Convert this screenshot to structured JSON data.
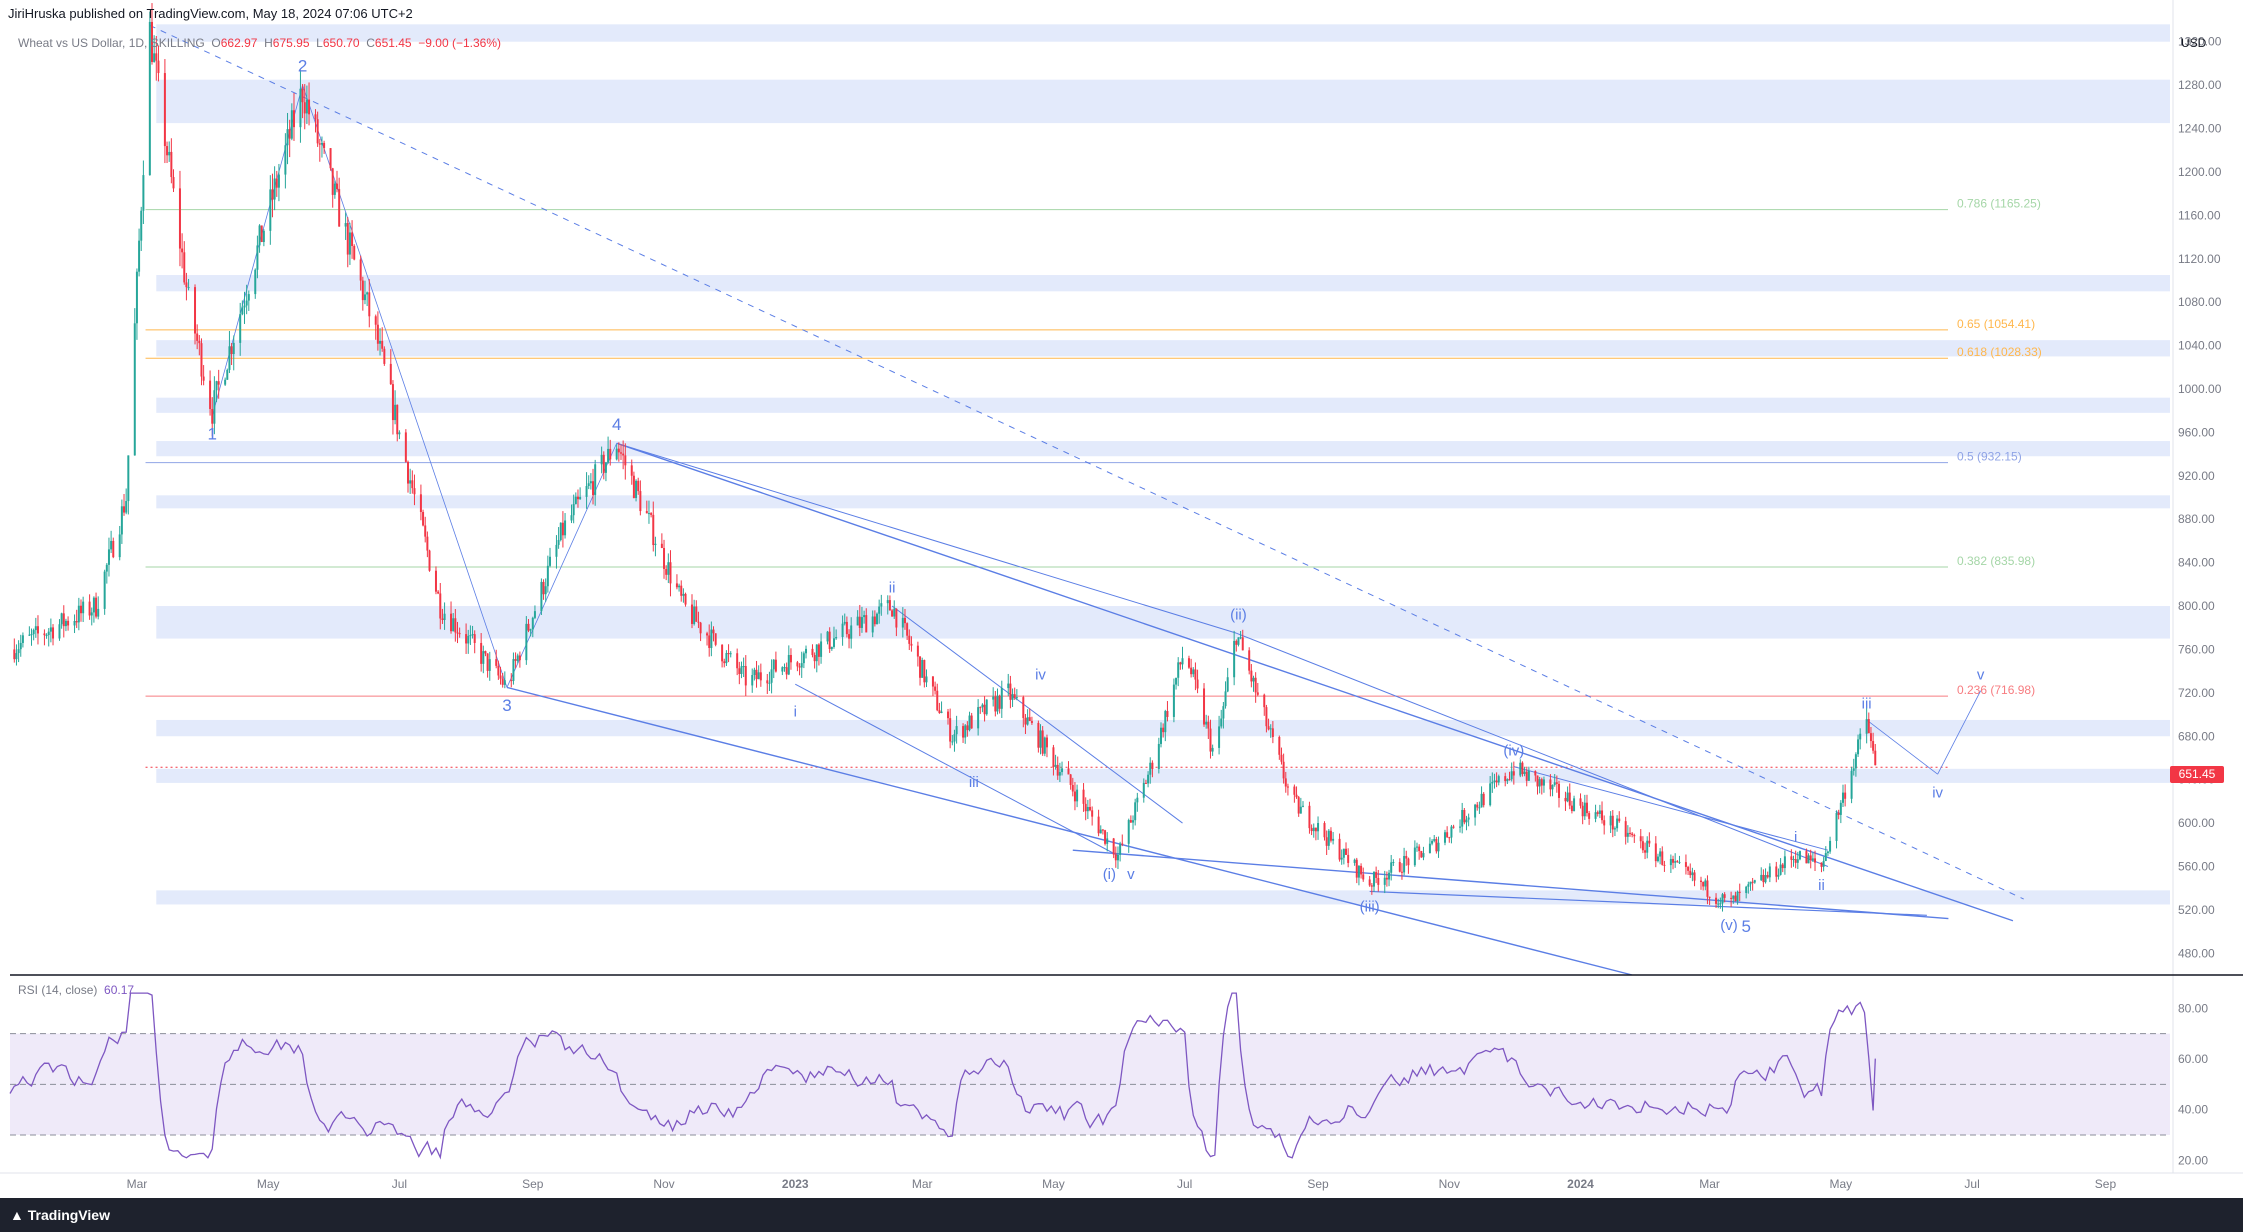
{
  "header": {
    "published": "JiriHruska published on TradingView.com, May 18, 2024 07:06 UTC+2"
  },
  "legend": {
    "symbol": "Wheat vs US Dollar, 1D, SKILLING",
    "open_label": "O",
    "open": "662.97",
    "high_label": "H",
    "high": "675.95",
    "low_label": "L",
    "low": "650.70",
    "close_label": "C",
    "close": "651.45",
    "change": "−9.00 (−1.36%)"
  },
  "rsi_legend": {
    "label": "RSI (14, close)",
    "value": "60.17"
  },
  "currency": "USD",
  "footer": {
    "brand": "TradingView"
  },
  "chart_data": {
    "type": "candlestick",
    "title": "Wheat vs US Dollar, 1D, SKILLING",
    "currency": "USD",
    "ylim": [
      460,
      1340
    ],
    "y_ticks": [
      480,
      520,
      560,
      600,
      640,
      680,
      720,
      760,
      800,
      840,
      880,
      920,
      960,
      1000,
      1040,
      1080,
      1120,
      1160,
      1200,
      1240,
      1280,
      1320
    ],
    "x_ticks": [
      "Mar",
      "May",
      "Jul",
      "Sep",
      "Nov",
      "2023",
      "Mar",
      "May",
      "Jul",
      "Sep",
      "Nov",
      "2024",
      "Mar",
      "May",
      "Jul",
      "Sep"
    ],
    "last_price": "651.45",
    "price_path": [
      [
        "2022-01-01",
        760
      ],
      [
        "2022-02-10",
        800
      ],
      [
        "2022-02-24",
        900
      ],
      [
        "2022-03-07",
        1330
      ],
      [
        "2022-03-25",
        1080
      ],
      [
        "2022-04-05",
        980
      ],
      [
        "2022-05-17",
        1275
      ],
      [
        "2022-06-20",
        1050
      ],
      [
        "2022-07-20",
        800
      ],
      [
        "2022-08-20",
        725
      ],
      [
        "2022-09-15",
        870
      ],
      [
        "2022-10-10",
        950
      ],
      [
        "2022-11-10",
        800
      ],
      [
        "2022-12-10",
        730
      ],
      [
        "2023-01-10",
        760
      ],
      [
        "2023-02-15",
        800
      ],
      [
        "2023-03-15",
        680
      ],
      [
        "2023-04-10",
        720
      ],
      [
        "2023-05-31",
        570
      ],
      [
        "2023-06-15",
        650
      ],
      [
        "2023-07-01",
        760
      ],
      [
        "2023-07-15",
        660
      ],
      [
        "2023-07-25",
        775
      ],
      [
        "2023-08-20",
        620
      ],
      [
        "2023-09-25",
        545
      ],
      [
        "2023-10-25",
        580
      ],
      [
        "2023-12-01",
        650
      ],
      [
        "2024-01-15",
        600
      ],
      [
        "2024-03-10",
        525
      ],
      [
        "2024-04-10",
        570
      ],
      [
        "2024-04-22",
        560
      ],
      [
        "2024-05-13",
        695
      ],
      [
        "2024-05-17",
        651.45
      ]
    ],
    "fib_levels": [
      {
        "ratio": "0.786",
        "value": 1165.25,
        "label": "0.786 (1165.25)",
        "color": "#a5d6a7"
      },
      {
        "ratio": "0.65",
        "value": 1054.41,
        "label": "0.65 (1054.41)",
        "color": "#ffb74d"
      },
      {
        "ratio": "0.618",
        "value": 1028.33,
        "label": "0.618 (1028.33)",
        "color": "#ffb74d"
      },
      {
        "ratio": "0.5",
        "value": 932.15,
        "label": "0.5 (932.15)",
        "color": "#90a4e6"
      },
      {
        "ratio": "0.382",
        "value": 835.98,
        "label": "0.382 (835.98)",
        "color": "#a5d6a7"
      },
      {
        "ratio": "0.236",
        "value": 716.98,
        "label": "0.236 (716.98)",
        "color": "#f77c80"
      }
    ],
    "wave_labels": [
      {
        "text": "1",
        "date": "2022-04-05",
        "price": 970,
        "pos": "below"
      },
      {
        "text": "2",
        "date": "2022-05-17",
        "price": 1285,
        "pos": "above"
      },
      {
        "text": "3",
        "date": "2022-08-20",
        "price": 720,
        "pos": "below"
      },
      {
        "text": "4",
        "date": "2022-10-10",
        "price": 955,
        "pos": "above"
      },
      {
        "text": "i",
        "date": "2023-01-01",
        "price": 715,
        "pos": "below"
      },
      {
        "text": "ii",
        "date": "2023-02-15",
        "price": 805,
        "pos": "above"
      },
      {
        "text": "iii",
        "date": "2023-03-25",
        "price": 650,
        "pos": "below"
      },
      {
        "text": "iv",
        "date": "2023-04-25",
        "price": 725,
        "pos": "above"
      },
      {
        "text": "(i)",
        "date": "2023-05-27",
        "price": 565,
        "pos": "below"
      },
      {
        "text": "v",
        "date": "2023-06-06",
        "price": 565,
        "pos": "below"
      },
      {
        "text": "(ii)",
        "date": "2023-07-26",
        "price": 780,
        "pos": "above"
      },
      {
        "text": "(iii)",
        "date": "2023-09-25",
        "price": 535,
        "pos": "below"
      },
      {
        "text": "(iv)",
        "date": "2023-12-01",
        "price": 655,
        "pos": "above"
      },
      {
        "text": "(v)",
        "date": "2024-03-10",
        "price": 518,
        "pos": "below"
      },
      {
        "text": "5",
        "date": "2024-03-18",
        "price": 516,
        "pos": "below"
      },
      {
        "text": "i",
        "date": "2024-04-10",
        "price": 575,
        "pos": "above"
      },
      {
        "text": "ii",
        "date": "2024-04-22",
        "price": 555,
        "pos": "below"
      },
      {
        "text": "iii",
        "date": "2024-05-13",
        "price": 698,
        "pos": "above"
      },
      {
        "text": "iv",
        "date": "2024-06-15",
        "price": 640,
        "pos": "below"
      },
      {
        "text": "v",
        "date": "2024-07-05",
        "price": 725,
        "pos": "above"
      }
    ],
    "rsi": {
      "label": "RSI (14, close)",
      "value": 60.17,
      "ylim": [
        15,
        90
      ],
      "y_ticks": [
        20,
        40,
        60,
        80
      ],
      "bands": [
        30,
        50,
        70
      ]
    }
  },
  "colors": {
    "up": "#26a69a",
    "down": "#f23645",
    "wave": "#5b7ee5",
    "zone": "#e3eafb",
    "rsi_line": "#7e57c2",
    "rsi_band": "#efeaf9"
  }
}
